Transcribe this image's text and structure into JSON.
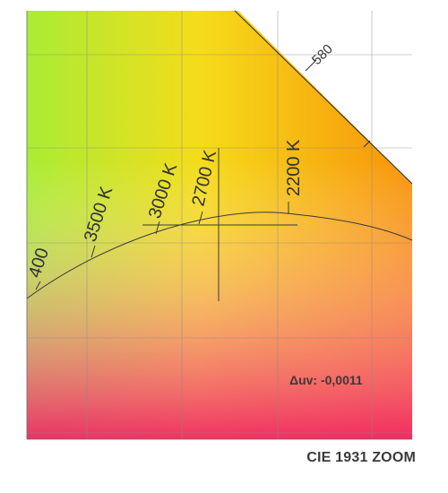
{
  "title": "CIE 1931 ZOOM",
  "delta_uv": "Δuv: -0,0011",
  "wavelength_labels": [
    {
      "text": "580"
    }
  ],
  "cct_labels": [
    {
      "text": "400"
    },
    {
      "text": "3500 K"
    },
    {
      "text": "3000 K"
    },
    {
      "text": "2700 K"
    },
    {
      "text": "2200 K"
    }
  ],
  "colors": {
    "curve": "#3a3a3a",
    "grid": "#8a8a8a",
    "text": "#333333"
  }
}
